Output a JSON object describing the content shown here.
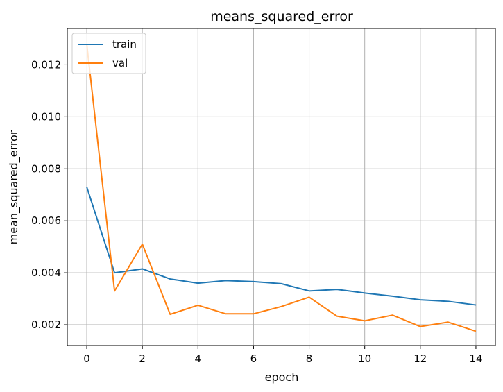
{
  "chart_data": {
    "type": "line",
    "title": "means_squared_error",
    "xlabel": "epoch",
    "ylabel": "mean_squared_error",
    "x": [
      0,
      1,
      2,
      3,
      4,
      5,
      6,
      7,
      8,
      9,
      10,
      11,
      12,
      13,
      14
    ],
    "xlim": [
      -0.7,
      14.7
    ],
    "ylim": [
      0.0012,
      0.0134
    ],
    "xticks": [
      0,
      2,
      4,
      6,
      8,
      10,
      12,
      14
    ],
    "yticks": [
      0.002,
      0.004,
      0.006,
      0.008,
      0.01,
      0.012
    ],
    "xtick_labels": [
      "0",
      "2",
      "4",
      "6",
      "8",
      "10",
      "12",
      "14"
    ],
    "ytick_labels": [
      "0.002",
      "0.004",
      "0.006",
      "0.008",
      "0.010",
      "0.012"
    ],
    "grid": true,
    "legend_position": "top-left",
    "series": [
      {
        "name": "train",
        "color": "#1f77b4",
        "values": [
          0.0073,
          0.004,
          0.00415,
          0.00376,
          0.0036,
          0.0037,
          0.00366,
          0.00358,
          0.0033,
          0.00336,
          0.00322,
          0.0031,
          0.00296,
          0.0029,
          0.00276
        ]
      },
      {
        "name": "val",
        "color": "#ff7f0e",
        "values": [
          0.0128,
          0.0033,
          0.0051,
          0.0024,
          0.00275,
          0.00242,
          0.00242,
          0.0027,
          0.00306,
          0.00233,
          0.00215,
          0.00237,
          0.00193,
          0.0021,
          0.00175
        ]
      }
    ]
  }
}
